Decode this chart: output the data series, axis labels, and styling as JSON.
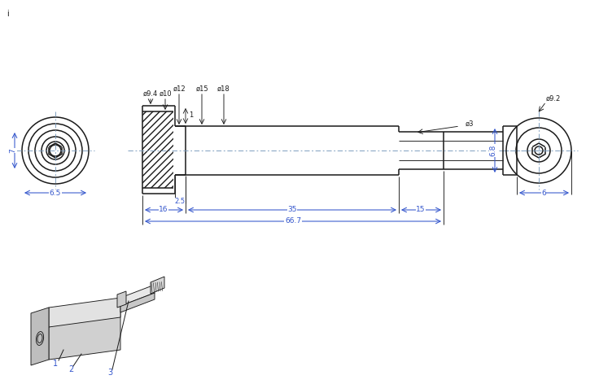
{
  "bg_color": "#ffffff",
  "line_color": "#1a1a1a",
  "dim_color": "#3355cc",
  "lbl_color": "#3355cc",
  "dims": {
    "phi94": "ø9.4",
    "phi10": "ø10",
    "phi12": "ø12",
    "phi15": "ø15",
    "phi18": "ø18",
    "phi3": "ø3",
    "phi92": "ø9.2",
    "len_65": "6.5",
    "len_7": "7",
    "len_25": "2.5",
    "len_16": "16",
    "len_35": "35",
    "len_15": "15",
    "len_667": "66.7",
    "len_6": "6",
    "len_68": "6.8",
    "len_1": "1"
  },
  "labels": [
    "1",
    "2",
    "3"
  ],
  "note_i": "i"
}
